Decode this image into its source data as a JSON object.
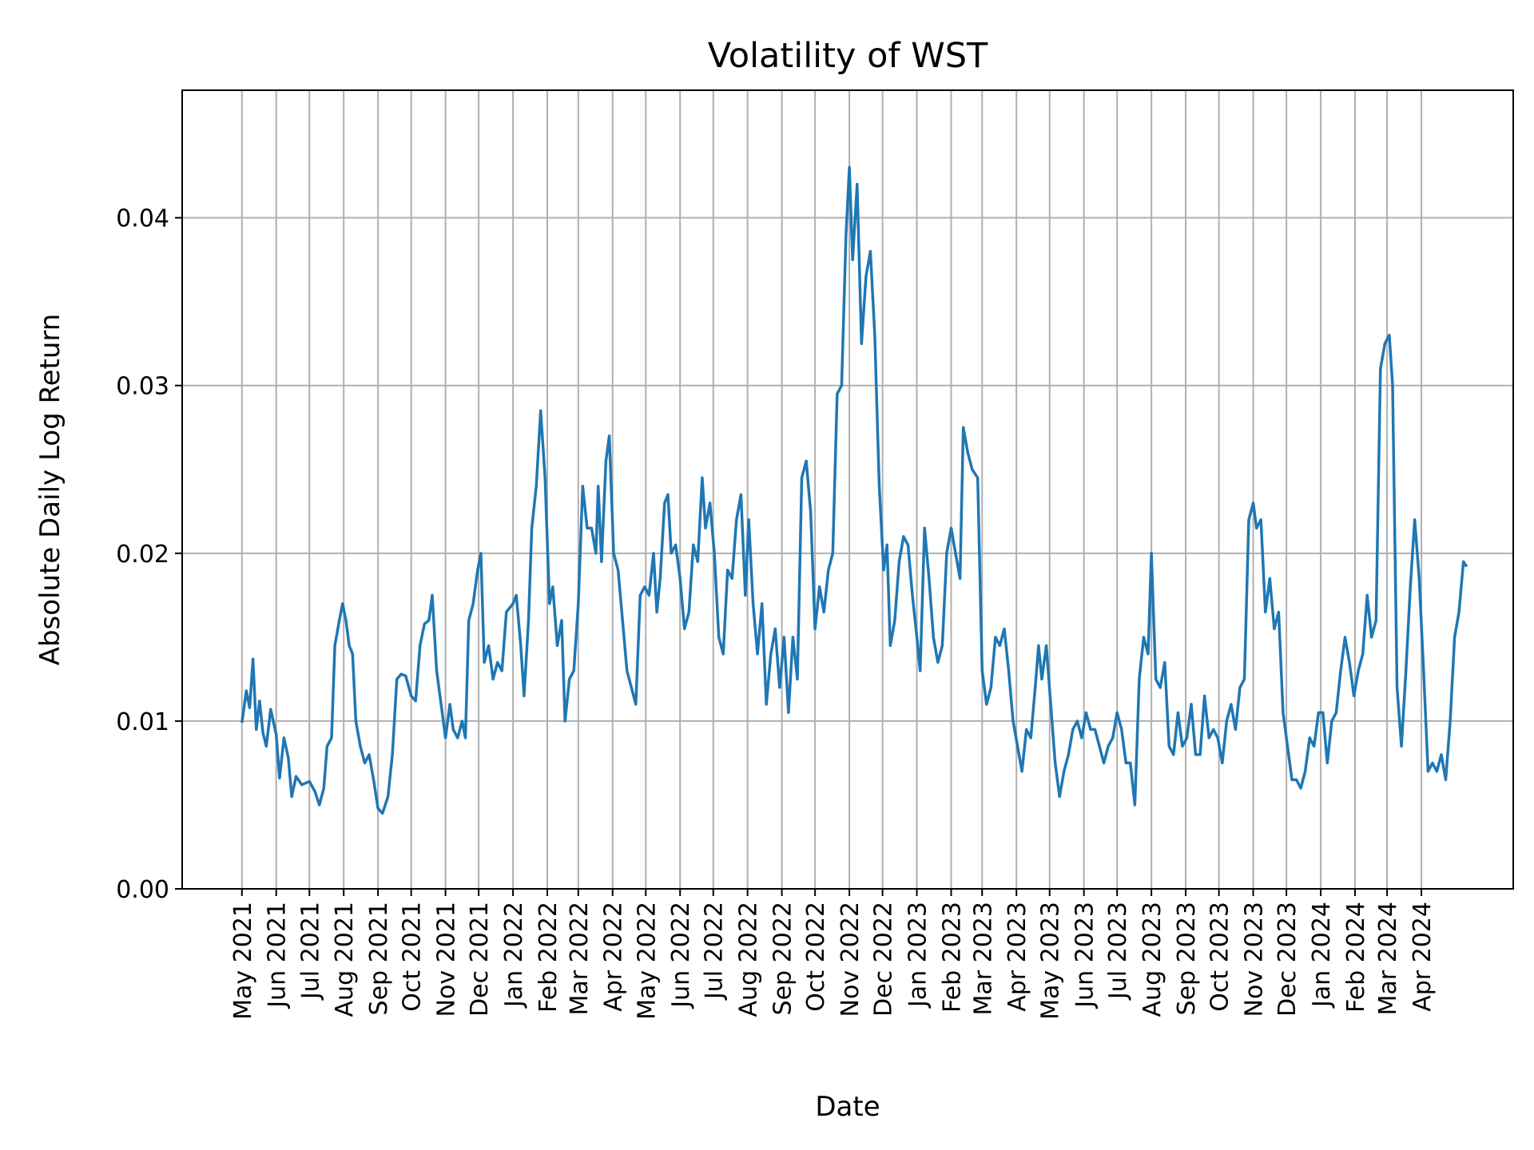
{
  "chart_data": {
    "type": "line",
    "title": "Volatility of WST",
    "xlabel": "Date",
    "ylabel": "Absolute Daily Log Return",
    "xlim": [
      "2021-03-08",
      "2024-06-23"
    ],
    "ylim": [
      0,
      0.0476
    ],
    "grid": true,
    "line_color": "#1f77b4",
    "y_ticks": [
      0.0,
      0.01,
      0.02,
      0.03,
      0.04
    ],
    "y_tick_labels": [
      "0.00",
      "0.01",
      "0.02",
      "0.03",
      "0.04"
    ],
    "x_ticks": [
      "2021-05-01",
      "2021-06-01",
      "2021-07-01",
      "2021-08-01",
      "2021-09-01",
      "2021-10-01",
      "2021-11-01",
      "2021-12-01",
      "2022-01-01",
      "2022-02-01",
      "2022-03-01",
      "2022-04-01",
      "2022-05-01",
      "2022-06-01",
      "2022-07-01",
      "2022-08-01",
      "2022-09-01",
      "2022-10-01",
      "2022-11-01",
      "2022-12-01",
      "2023-01-01",
      "2023-02-01",
      "2023-03-01",
      "2023-04-01",
      "2023-05-01",
      "2023-06-01",
      "2023-07-01",
      "2023-08-01",
      "2023-09-01",
      "2023-10-01",
      "2023-11-01",
      "2023-12-01",
      "2024-01-01",
      "2024-02-01",
      "2024-03-01",
      "2024-04-01"
    ],
    "x_tick_labels": [
      "May 2021",
      "Jun 2021",
      "Jul 2021",
      "Aug 2021",
      "Sep 2021",
      "Oct 2021",
      "Nov 2021",
      "Dec 2021",
      "Jan 2022",
      "Feb 2022",
      "Mar 2022",
      "Apr 2022",
      "May 2022",
      "Jun 2022",
      "Jul 2022",
      "Aug 2022",
      "Sep 2022",
      "Oct 2022",
      "Nov 2022",
      "Dec 2022",
      "Jan 2023",
      "Feb 2023",
      "Mar 2023",
      "Apr 2023",
      "May 2023",
      "Jun 2023",
      "Jul 2023",
      "Aug 2023",
      "Sep 2023",
      "Oct 2023",
      "Nov 2023",
      "Dec 2023",
      "Jan 2024",
      "Feb 2024",
      "Mar 2024",
      "Apr 2024"
    ],
    "points": [
      [
        "2021-05-01",
        0.0099
      ],
      [
        "2021-05-05",
        0.0118
      ],
      [
        "2021-05-08",
        0.0108
      ],
      [
        "2021-05-11",
        0.0137
      ],
      [
        "2021-05-14",
        0.0095
      ],
      [
        "2021-05-17",
        0.0112
      ],
      [
        "2021-05-20",
        0.0093
      ],
      [
        "2021-05-23",
        0.0085
      ],
      [
        "2021-05-27",
        0.0107
      ],
      [
        "2021-06-01",
        0.0092
      ],
      [
        "2021-06-04",
        0.0066
      ],
      [
        "2021-06-08",
        0.009
      ],
      [
        "2021-06-12",
        0.0078
      ],
      [
        "2021-06-15",
        0.0055
      ],
      [
        "2021-06-19",
        0.0067
      ],
      [
        "2021-06-24",
        0.0062
      ],
      [
        "2021-07-01",
        0.0064
      ],
      [
        "2021-07-06",
        0.0058
      ],
      [
        "2021-07-10",
        0.005
      ],
      [
        "2021-07-14",
        0.006
      ],
      [
        "2021-07-17",
        0.0085
      ],
      [
        "2021-07-21",
        0.009
      ],
      [
        "2021-07-24",
        0.0145
      ],
      [
        "2021-07-28",
        0.016
      ],
      [
        "2021-07-31",
        0.017
      ],
      [
        "2021-08-03",
        0.016
      ],
      [
        "2021-08-06",
        0.0145
      ],
      [
        "2021-08-09",
        0.014
      ],
      [
        "2021-08-12",
        0.01
      ],
      [
        "2021-08-16",
        0.0085
      ],
      [
        "2021-08-20",
        0.0075
      ],
      [
        "2021-08-24",
        0.008
      ],
      [
        "2021-08-28",
        0.0065
      ],
      [
        "2021-09-01",
        0.0048
      ],
      [
        "2021-09-05",
        0.0045
      ],
      [
        "2021-09-10",
        0.0055
      ],
      [
        "2021-09-14",
        0.008
      ],
      [
        "2021-09-18",
        0.0125
      ],
      [
        "2021-09-22",
        0.0128
      ],
      [
        "2021-09-26",
        0.0127
      ],
      [
        "2021-10-01",
        0.0115
      ],
      [
        "2021-10-05",
        0.0112
      ],
      [
        "2021-10-09",
        0.0145
      ],
      [
        "2021-10-13",
        0.0158
      ],
      [
        "2021-10-17",
        0.016
      ],
      [
        "2021-10-20",
        0.0175
      ],
      [
        "2021-10-24",
        0.013
      ],
      [
        "2021-10-28",
        0.011
      ],
      [
        "2021-11-01",
        0.009
      ],
      [
        "2021-11-05",
        0.011
      ],
      [
        "2021-11-08",
        0.0095
      ],
      [
        "2021-11-12",
        0.009
      ],
      [
        "2021-11-16",
        0.01
      ],
      [
        "2021-11-19",
        0.009
      ],
      [
        "2021-11-22",
        0.016
      ],
      [
        "2021-11-26",
        0.017
      ],
      [
        "2021-11-30",
        0.019
      ],
      [
        "2021-12-03",
        0.02
      ],
      [
        "2021-12-06",
        0.0135
      ],
      [
        "2021-12-10",
        0.0145
      ],
      [
        "2021-12-14",
        0.0125
      ],
      [
        "2021-12-18",
        0.0135
      ],
      [
        "2021-12-22",
        0.013
      ],
      [
        "2021-12-26",
        0.0165
      ],
      [
        "2022-01-01",
        0.017
      ],
      [
        "2022-01-04",
        0.0175
      ],
      [
        "2022-01-08",
        0.0145
      ],
      [
        "2022-01-11",
        0.0115
      ],
      [
        "2022-01-15",
        0.016
      ],
      [
        "2022-01-18",
        0.0215
      ],
      [
        "2022-01-22",
        0.024
      ],
      [
        "2022-01-26",
        0.0285
      ],
      [
        "2022-01-30",
        0.0245
      ],
      [
        "2022-02-03",
        0.017
      ],
      [
        "2022-02-06",
        0.018
      ],
      [
        "2022-02-10",
        0.0145
      ],
      [
        "2022-02-14",
        0.016
      ],
      [
        "2022-02-17",
        0.01
      ],
      [
        "2022-02-21",
        0.0125
      ],
      [
        "2022-02-25",
        0.013
      ],
      [
        "2022-03-01",
        0.017
      ],
      [
        "2022-03-05",
        0.024
      ],
      [
        "2022-03-09",
        0.0215
      ],
      [
        "2022-03-13",
        0.0215
      ],
      [
        "2022-03-17",
        0.02
      ],
      [
        "2022-03-19",
        0.024
      ],
      [
        "2022-03-22",
        0.0195
      ],
      [
        "2022-03-26",
        0.0255
      ],
      [
        "2022-03-29",
        0.027
      ],
      [
        "2022-04-02",
        0.02
      ],
      [
        "2022-04-06",
        0.019
      ],
      [
        "2022-04-10",
        0.016
      ],
      [
        "2022-04-14",
        0.013
      ],
      [
        "2022-04-18",
        0.012
      ],
      [
        "2022-04-22",
        0.011
      ],
      [
        "2022-04-26",
        0.0175
      ],
      [
        "2022-04-30",
        0.018
      ],
      [
        "2022-05-04",
        0.0175
      ],
      [
        "2022-05-08",
        0.02
      ],
      [
        "2022-05-11",
        0.0165
      ],
      [
        "2022-05-14",
        0.0185
      ],
      [
        "2022-05-18",
        0.023
      ],
      [
        "2022-05-21",
        0.0235
      ],
      [
        "2022-05-24",
        0.02
      ],
      [
        "2022-05-28",
        0.0205
      ],
      [
        "2022-06-01",
        0.0185
      ],
      [
        "2022-06-05",
        0.0155
      ],
      [
        "2022-06-09",
        0.0165
      ],
      [
        "2022-06-13",
        0.0205
      ],
      [
        "2022-06-17",
        0.0195
      ],
      [
        "2022-06-21",
        0.0245
      ],
      [
        "2022-06-24",
        0.0215
      ],
      [
        "2022-06-28",
        0.023
      ],
      [
        "2022-07-02",
        0.02
      ],
      [
        "2022-07-06",
        0.015
      ],
      [
        "2022-07-10",
        0.014
      ],
      [
        "2022-07-14",
        0.019
      ],
      [
        "2022-07-18",
        0.0185
      ],
      [
        "2022-07-22",
        0.022
      ],
      [
        "2022-07-26",
        0.0235
      ],
      [
        "2022-07-30",
        0.0175
      ],
      [
        "2022-08-02",
        0.022
      ],
      [
        "2022-08-06",
        0.017
      ],
      [
        "2022-08-10",
        0.014
      ],
      [
        "2022-08-14",
        0.017
      ],
      [
        "2022-08-18",
        0.011
      ],
      [
        "2022-08-22",
        0.014
      ],
      [
        "2022-08-26",
        0.0155
      ],
      [
        "2022-08-30",
        0.012
      ],
      [
        "2022-09-03",
        0.015
      ],
      [
        "2022-09-07",
        0.0105
      ],
      [
        "2022-09-11",
        0.015
      ],
      [
        "2022-09-15",
        0.0125
      ],
      [
        "2022-09-19",
        0.0245
      ],
      [
        "2022-09-23",
        0.0255
      ],
      [
        "2022-09-27",
        0.0225
      ],
      [
        "2022-10-01",
        0.0155
      ],
      [
        "2022-10-05",
        0.018
      ],
      [
        "2022-10-09",
        0.0165
      ],
      [
        "2022-10-13",
        0.019
      ],
      [
        "2022-10-17",
        0.02
      ],
      [
        "2022-10-21",
        0.0295
      ],
      [
        "2022-10-25",
        0.03
      ],
      [
        "2022-10-29",
        0.039
      ],
      [
        "2022-11-01",
        0.043
      ],
      [
        "2022-11-04",
        0.0375
      ],
      [
        "2022-11-08",
        0.042
      ],
      [
        "2022-11-12",
        0.0325
      ],
      [
        "2022-11-16",
        0.0365
      ],
      [
        "2022-11-20",
        0.038
      ],
      [
        "2022-11-24",
        0.033
      ],
      [
        "2022-11-28",
        0.024
      ],
      [
        "2022-12-02",
        0.019
      ],
      [
        "2022-12-05",
        0.0205
      ],
      [
        "2022-12-08",
        0.0145
      ],
      [
        "2022-12-12",
        0.016
      ],
      [
        "2022-12-16",
        0.0195
      ],
      [
        "2022-12-20",
        0.021
      ],
      [
        "2022-12-24",
        0.0205
      ],
      [
        "2022-12-28",
        0.0175
      ],
      [
        "2023-01-01",
        0.015
      ],
      [
        "2023-01-04",
        0.013
      ],
      [
        "2023-01-08",
        0.0215
      ],
      [
        "2023-01-12",
        0.0185
      ],
      [
        "2023-01-16",
        0.015
      ],
      [
        "2023-01-20",
        0.0135
      ],
      [
        "2023-01-24",
        0.0145
      ],
      [
        "2023-01-28",
        0.02
      ],
      [
        "2023-02-01",
        0.0215
      ],
      [
        "2023-02-05",
        0.02
      ],
      [
        "2023-02-09",
        0.0185
      ],
      [
        "2023-02-12",
        0.0275
      ],
      [
        "2023-02-16",
        0.026
      ],
      [
        "2023-02-20",
        0.025
      ],
      [
        "2023-02-25",
        0.0245
      ],
      [
        "2023-03-01",
        0.013
      ],
      [
        "2023-03-05",
        0.011
      ],
      [
        "2023-03-09",
        0.012
      ],
      [
        "2023-03-13",
        0.015
      ],
      [
        "2023-03-17",
        0.0145
      ],
      [
        "2023-03-21",
        0.0155
      ],
      [
        "2023-03-25",
        0.013
      ],
      [
        "2023-03-29",
        0.01
      ],
      [
        "2023-04-02",
        0.0085
      ],
      [
        "2023-04-06",
        0.007
      ],
      [
        "2023-04-10",
        0.0095
      ],
      [
        "2023-04-14",
        0.009
      ],
      [
        "2023-04-18",
        0.012
      ],
      [
        "2023-04-21",
        0.0145
      ],
      [
        "2023-04-24",
        0.0125
      ],
      [
        "2023-04-28",
        0.0145
      ],
      [
        "2023-05-02",
        0.011
      ],
      [
        "2023-05-06",
        0.0075
      ],
      [
        "2023-05-10",
        0.0055
      ],
      [
        "2023-05-14",
        0.007
      ],
      [
        "2023-05-18",
        0.008
      ],
      [
        "2023-05-22",
        0.0095
      ],
      [
        "2023-05-26",
        0.01
      ],
      [
        "2023-05-30",
        0.009
      ],
      [
        "2023-06-03",
        0.0105
      ],
      [
        "2023-06-07",
        0.0095
      ],
      [
        "2023-06-11",
        0.0095
      ],
      [
        "2023-06-15",
        0.0085
      ],
      [
        "2023-06-19",
        0.0075
      ],
      [
        "2023-06-23",
        0.0085
      ],
      [
        "2023-06-27",
        0.009
      ],
      [
        "2023-07-01",
        0.0105
      ],
      [
        "2023-07-05",
        0.0095
      ],
      [
        "2023-07-09",
        0.0075
      ],
      [
        "2023-07-13",
        0.0075
      ],
      [
        "2023-07-17",
        0.005
      ],
      [
        "2023-07-21",
        0.0125
      ],
      [
        "2023-07-25",
        0.015
      ],
      [
        "2023-07-29",
        0.014
      ],
      [
        "2023-08-01",
        0.02
      ],
      [
        "2023-08-05",
        0.0125
      ],
      [
        "2023-08-09",
        0.012
      ],
      [
        "2023-08-13",
        0.0135
      ],
      [
        "2023-08-17",
        0.0085
      ],
      [
        "2023-08-21",
        0.008
      ],
      [
        "2023-08-25",
        0.0105
      ],
      [
        "2023-08-29",
        0.0085
      ],
      [
        "2023-09-02",
        0.009
      ],
      [
        "2023-09-06",
        0.011
      ],
      [
        "2023-09-10",
        0.008
      ],
      [
        "2023-09-14",
        0.008
      ],
      [
        "2023-09-18",
        0.0115
      ],
      [
        "2023-09-22",
        0.009
      ],
      [
        "2023-09-26",
        0.0095
      ],
      [
        "2023-09-30",
        0.009
      ],
      [
        "2023-10-04",
        0.0075
      ],
      [
        "2023-10-08",
        0.01
      ],
      [
        "2023-10-12",
        0.011
      ],
      [
        "2023-10-16",
        0.0095
      ],
      [
        "2023-10-20",
        0.012
      ],
      [
        "2023-10-24",
        0.0125
      ],
      [
        "2023-10-28",
        0.022
      ],
      [
        "2023-11-01",
        0.023
      ],
      [
        "2023-11-04",
        0.0215
      ],
      [
        "2023-11-08",
        0.022
      ],
      [
        "2023-11-12",
        0.0165
      ],
      [
        "2023-11-16",
        0.0185
      ],
      [
        "2023-11-20",
        0.0155
      ],
      [
        "2023-11-24",
        0.0165
      ],
      [
        "2023-11-28",
        0.0105
      ],
      [
        "2023-12-02",
        0.0085
      ],
      [
        "2023-12-06",
        0.0065
      ],
      [
        "2023-12-10",
        0.0065
      ],
      [
        "2023-12-14",
        0.006
      ],
      [
        "2023-12-18",
        0.007
      ],
      [
        "2023-12-22",
        0.009
      ],
      [
        "2023-12-26",
        0.0085
      ],
      [
        "2023-12-30",
        0.0105
      ],
      [
        "2024-01-03",
        0.0105
      ],
      [
        "2024-01-07",
        0.0075
      ],
      [
        "2024-01-11",
        0.01
      ],
      [
        "2024-01-15",
        0.0105
      ],
      [
        "2024-01-19",
        0.013
      ],
      [
        "2024-01-23",
        0.015
      ],
      [
        "2024-01-27",
        0.0135
      ],
      [
        "2024-01-31",
        0.0115
      ],
      [
        "2024-02-04",
        0.013
      ],
      [
        "2024-02-08",
        0.014
      ],
      [
        "2024-02-12",
        0.0175
      ],
      [
        "2024-02-16",
        0.015
      ],
      [
        "2024-02-20",
        0.016
      ],
      [
        "2024-02-24",
        0.031
      ],
      [
        "2024-02-28",
        0.0325
      ],
      [
        "2024-03-03",
        0.033
      ],
      [
        "2024-03-06",
        0.03
      ],
      [
        "2024-03-10",
        0.012
      ],
      [
        "2024-03-14",
        0.0085
      ],
      [
        "2024-03-18",
        0.013
      ],
      [
        "2024-03-22",
        0.018
      ],
      [
        "2024-03-26",
        0.022
      ],
      [
        "2024-03-30",
        0.0185
      ],
      [
        "2024-04-03",
        0.013
      ],
      [
        "2024-04-07",
        0.007
      ],
      [
        "2024-04-11",
        0.0075
      ],
      [
        "2024-04-15",
        0.007
      ],
      [
        "2024-04-19",
        0.008
      ],
      [
        "2024-04-23",
        0.0065
      ],
      [
        "2024-04-27",
        0.01
      ],
      [
        "2024-05-01",
        0.015
      ],
      [
        "2024-05-05",
        0.0165
      ],
      [
        "2024-05-09",
        0.0195
      ],
      [
        "2024-05-12",
        0.0192
      ]
    ]
  }
}
